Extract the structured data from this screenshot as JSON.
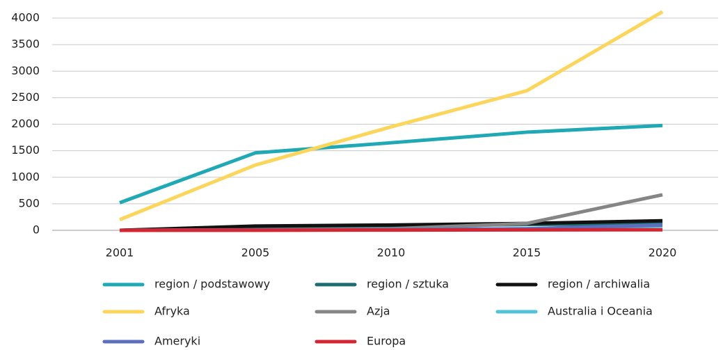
{
  "chart_data": {
    "type": "line",
    "categories": [
      "2001",
      "2005",
      "2010",
      "2015",
      "2020"
    ],
    "series": [
      {
        "name": "region / podstawowy",
        "color": "#1fa9b5",
        "values": [
          520,
          1460,
          1650,
          1850,
          1975
        ]
      },
      {
        "name": "region / sztuka",
        "color": "#1b6d72",
        "values": [
          0,
          60,
          80,
          110,
          130
        ]
      },
      {
        "name": "region / archiwalia",
        "color": "#111111",
        "values": [
          0,
          80,
          100,
          130,
          180
        ]
      },
      {
        "name": "Afryka",
        "color": "#fcd65a",
        "values": [
          200,
          1230,
          1950,
          2630,
          4120
        ]
      },
      {
        "name": "Azja",
        "color": "#858585",
        "values": [
          0,
          10,
          30,
          130,
          670
        ]
      },
      {
        "name": "Australia i Oceania",
        "color": "#4fc3d8",
        "values": [
          0,
          5,
          10,
          30,
          80
        ]
      },
      {
        "name": "Ameryki",
        "color": "#5b6fbe",
        "values": [
          0,
          5,
          10,
          30,
          100
        ]
      },
      {
        "name": "Europa",
        "color": "#d42532",
        "values": [
          0,
          2,
          5,
          8,
          10
        ]
      }
    ],
    "ylim": [
      0,
      4000
    ],
    "yticks": [
      0,
      500,
      1000,
      1500,
      2000,
      2500,
      3000,
      3500,
      4000
    ],
    "grid": true,
    "legend": "bottom"
  }
}
